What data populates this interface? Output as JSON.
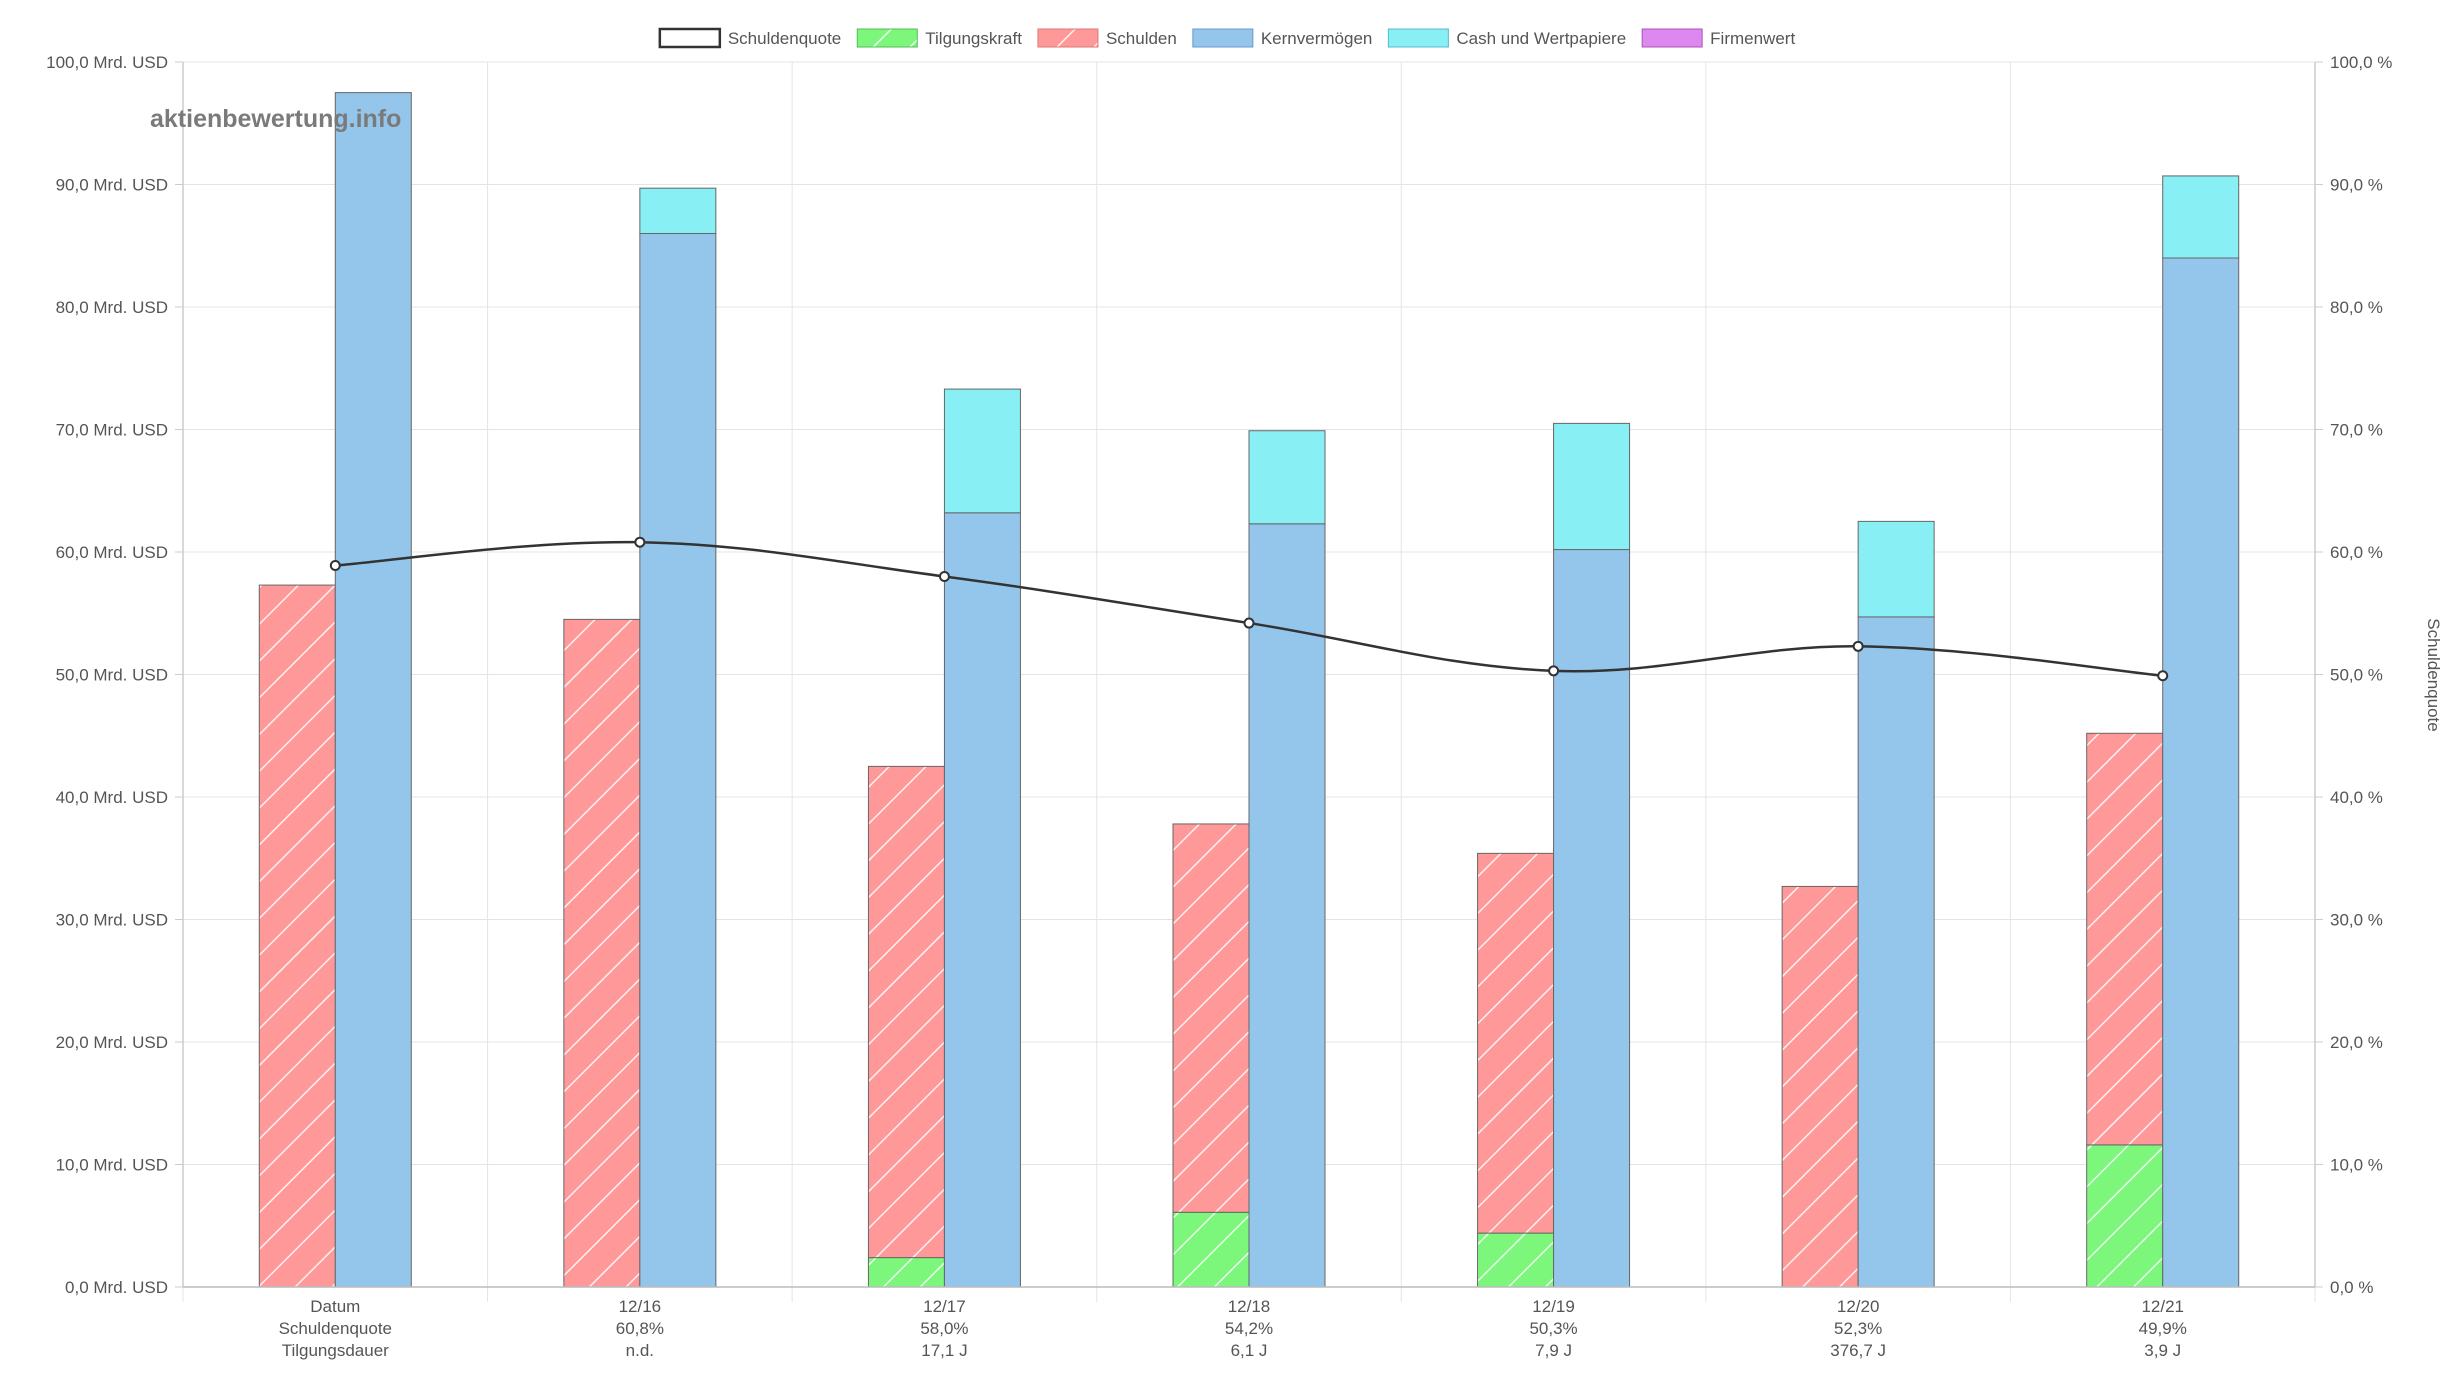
{
  "watermark": "aktienbewertung.info",
  "legend": [
    {
      "label": "Schuldenquote",
      "key": "quote",
      "color": "#ffffff",
      "border": "#333333",
      "pattern": false
    },
    {
      "label": "Tilgungskraft",
      "key": "tilgung",
      "color": "#7cf77c",
      "border": "#55bb55",
      "pattern": true
    },
    {
      "label": "Schulden",
      "key": "schulden",
      "color": "#ff9999",
      "border": "#dd7777",
      "pattern": true
    },
    {
      "label": "Kernvermögen",
      "key": "kern",
      "color": "#94c6ec",
      "border": "#6699cc",
      "pattern": false
    },
    {
      "label": "Cash und Wertpapiere",
      "key": "cash",
      "color": "#88f0f4",
      "border": "#55bbcc",
      "pattern": false
    },
    {
      "label": "Firmenwert",
      "key": "firmenwert",
      "color": "#dd88ee",
      "border": "#aa55bb",
      "pattern": false
    }
  ],
  "chart_data": {
    "type": "bar",
    "categories": [
      "12/16",
      "12/17",
      "12/18",
      "12/19",
      "12/20",
      "12/21"
    ],
    "x_row_header": [
      "Datum",
      "Schuldenquote",
      "Tilgungsdauer"
    ],
    "x_rows": [
      [
        "12/16",
        "60,8%",
        "n.d."
      ],
      [
        "12/17",
        "58,0%",
        "17,1 J"
      ],
      [
        "12/18",
        "54,2%",
        "6,1 J"
      ],
      [
        "12/19",
        "50,3%",
        "7,9 J"
      ],
      [
        "12/20",
        "52,3%",
        "376,7 J"
      ],
      [
        "12/21",
        "49,9%",
        "3,9 J"
      ]
    ],
    "first_group": {
      "schulden": 57.3,
      "kern": 97.5,
      "cash": 0,
      "quote": 58.9
    },
    "series": [
      {
        "name": "Schuldenquote",
        "type": "line",
        "axis": "right",
        "values": [
          60.8,
          58.0,
          54.2,
          50.3,
          52.3,
          49.9
        ]
      },
      {
        "name": "Tilgungskraft",
        "type": "bar",
        "stack": "debt",
        "values": [
          0,
          2.4,
          6.1,
          4.4,
          0,
          11.6
        ]
      },
      {
        "name": "Schulden",
        "type": "bar",
        "stack": "debt",
        "values": [
          54.5,
          42.5,
          37.8,
          35.4,
          32.7,
          45.2
        ]
      },
      {
        "name": "Kernvermögen",
        "type": "bar",
        "stack": "assets",
        "values": [
          86.0,
          63.2,
          62.3,
          60.2,
          54.7,
          84.0
        ]
      },
      {
        "name": "Cash und Wertpapiere",
        "type": "bar",
        "stack": "assets",
        "values": [
          3.7,
          10.1,
          7.6,
          10.3,
          7.8,
          6.7
        ]
      },
      {
        "name": "Firmenwert",
        "type": "bar",
        "stack": "assets",
        "values": [
          0,
          0,
          0,
          0,
          0,
          0
        ]
      }
    ],
    "y_left": {
      "min": 0,
      "max": 100,
      "step": 10,
      "ticks": [
        "0,0 Mrd. USD",
        "10,0 Mrd. USD",
        "20,0 Mrd. USD",
        "30,0 Mrd. USD",
        "40,0 Mrd. USD",
        "50,0 Mrd. USD",
        "60,0 Mrd. USD",
        "70,0 Mrd. USD",
        "80,0 Mrd. USD",
        "90,0 Mrd. USD",
        "100,0 Mrd. USD"
      ]
    },
    "y_right": {
      "min": 0,
      "max": 100,
      "step": 10,
      "label": "Schuldenquote",
      "ticks": [
        "0,0 %",
        "10,0 %",
        "20,0 %",
        "30,0 %",
        "40,0 %",
        "50,0 %",
        "60,0 %",
        "70,0 %",
        "80,0 %",
        "90,0 %",
        "100,0 %"
      ]
    },
    "grid": true,
    "legend_position": "top"
  }
}
